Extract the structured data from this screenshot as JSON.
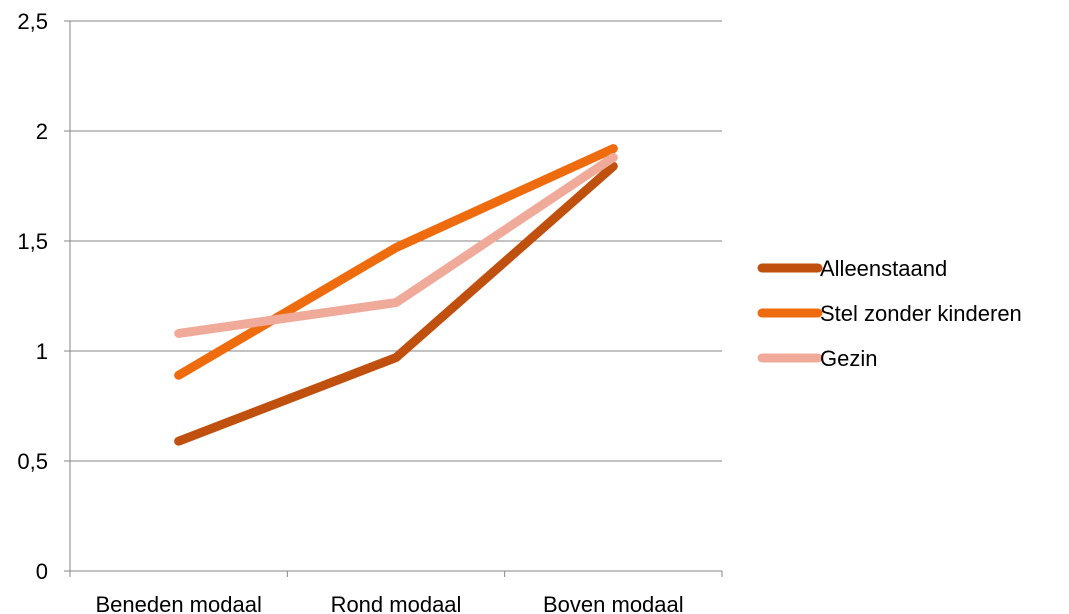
{
  "chart_data": {
    "type": "line",
    "categories": [
      "Beneden modaal",
      "Rond modaal",
      "Boven modaal"
    ],
    "series": [
      {
        "name": "Alleenstaand",
        "values": [
          0.59,
          0.97,
          1.84
        ],
        "color": "#C0500E"
      },
      {
        "name": "Stel zonder kinderen",
        "values": [
          0.89,
          1.47,
          1.92
        ],
        "color": "#EE6B0E"
      },
      {
        "name": "Gezin",
        "values": [
          1.08,
          1.22,
          1.88
        ],
        "color": "#F0AA9A"
      }
    ],
    "y_ticks": [
      {
        "value": 0,
        "label": "0"
      },
      {
        "value": 0.5,
        "label": "0,5"
      },
      {
        "value": 1,
        "label": "1"
      },
      {
        "value": 1.5,
        "label": "1,5"
      },
      {
        "value": 2,
        "label": "2"
      },
      {
        "value": 2.5,
        "label": "2,5"
      }
    ],
    "ylim": [
      0,
      2.5
    ],
    "grid": true,
    "legend_position": "right",
    "title": "",
    "xlabel": "",
    "ylabel": ""
  }
}
